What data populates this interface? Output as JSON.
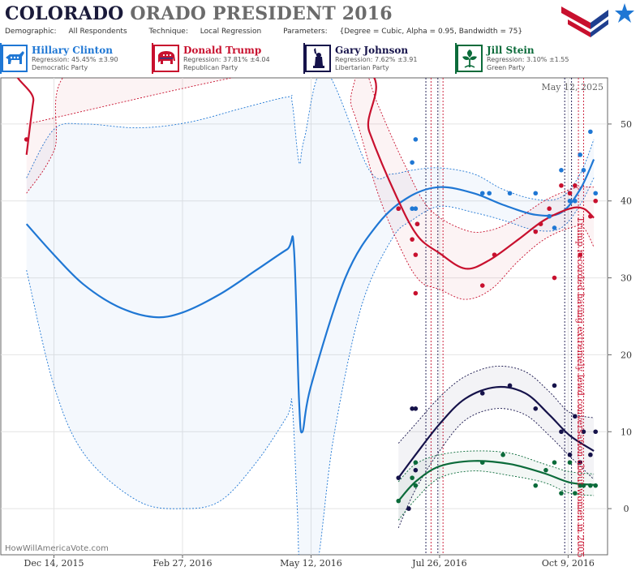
{
  "header": {
    "title_dark": "COLORADO",
    "title_grey": "ORADO PRESIDENT 2016",
    "demographic_label": "Demographic:",
    "demographic_value": "All Respondents",
    "technique_label": "Technique:",
    "technique_value": "Local Regression",
    "parameters_label": "Parameters:",
    "parameters_value": "{Degree = Cubic, Alpha = 0.95, Bandwidth = 75}"
  },
  "candidates": [
    {
      "name": "Hillary Clinton",
      "regression": "Regression: 45.45% ±3.90",
      "party": "Democratic Party",
      "color": "#1f77d4",
      "icon": "donkey-icon"
    },
    {
      "name": "Donald Trump",
      "regression": "Regression: 37.81% ±4.04",
      "party": "Republican Party",
      "color": "#c8102e",
      "icon": "elephant-icon"
    },
    {
      "name": "Gary Johnson",
      "regression": "Regression: 7.62% ±3.91",
      "party": "Libertarian Party",
      "color": "#15124a",
      "icon": "liberty-torch-icon"
    },
    {
      "name": "Jill Stein",
      "regression": "Regression: 3.10% ±1.55",
      "party": "Green Party",
      "color": "#0b6b3a",
      "icon": "leaf-icon"
    }
  ],
  "chart_data": {
    "type": "line",
    "date_label": "May 12, 2025",
    "watermark": "HowWillAmericaVote.com",
    "annotation": "Trump recorded having extremely lewd conversation about women in 2005",
    "x_ticks": [
      {
        "date": "2015-12-14",
        "label": "Dec 14, 2015"
      },
      {
        "date": "2016-02-27",
        "label": "Feb 27, 2016"
      },
      {
        "date": "2016-05-12",
        "label": "May 12, 2016"
      },
      {
        "date": "2016-07-26",
        "label": "Jul 26, 2016"
      },
      {
        "date": "2016-10-09",
        "label": "Oct 9, 2016"
      }
    ],
    "y_ticks": [
      0,
      10,
      20,
      30,
      40,
      50
    ],
    "ylim": [
      -6,
      56
    ],
    "xlim": [
      "2015-11-13",
      "2016-11-01"
    ],
    "event_lines": [
      {
        "date": "2016-07-18",
        "color": "#15124a"
      },
      {
        "date": "2016-07-21",
        "color": "#c8102e"
      },
      {
        "date": "2016-07-25",
        "color": "#15124a"
      },
      {
        "date": "2016-07-28",
        "color": "#c8102e"
      },
      {
        "date": "2016-10-07",
        "color": "#15124a"
      },
      {
        "date": "2016-10-11",
        "color": "#15124a"
      },
      {
        "date": "2016-10-15",
        "color": "#c8102e"
      },
      {
        "date": "2016-10-18",
        "color": "#c8102e"
      }
    ],
    "series": [
      {
        "name": "Hillary Clinton",
        "color": "#1f77d4",
        "band_fill": "rgba(31,119,212,0.05)",
        "line": [
          [
            "2015-11-28",
            37
          ],
          [
            "2015-12-14",
            33
          ],
          [
            "2015-12-31",
            29.2
          ],
          [
            "2016-01-20",
            26.3
          ],
          [
            "2016-02-10",
            24.9
          ],
          [
            "2016-02-27",
            25.5
          ],
          [
            "2016-03-20",
            27.9
          ],
          [
            "2016-04-10",
            31
          ],
          [
            "2016-04-28",
            33.7
          ],
          [
            "2016-05-02",
            33.9
          ],
          [
            "2016-05-05",
            14
          ],
          [
            "2016-05-07",
            10
          ],
          [
            "2016-05-12",
            16
          ],
          [
            "2016-06-01",
            30
          ],
          [
            "2016-06-20",
            37
          ],
          [
            "2016-07-08",
            40.5
          ],
          [
            "2016-07-26",
            41.8
          ],
          [
            "2016-08-15",
            41
          ],
          [
            "2016-09-01",
            39.5
          ],
          [
            "2016-09-20",
            38.2
          ],
          [
            "2016-10-05",
            38.5
          ],
          [
            "2016-10-16",
            41.5
          ],
          [
            "2016-10-24",
            45.4
          ]
        ],
        "upper": [
          [
            "2015-11-28",
            43
          ],
          [
            "2015-12-14",
            49.3
          ],
          [
            "2016-01-01",
            50
          ],
          [
            "2016-02-01",
            49.5
          ],
          [
            "2016-03-01",
            50.2
          ],
          [
            "2016-04-01",
            52
          ],
          [
            "2016-04-28",
            53.5
          ],
          [
            "2016-05-01",
            52.8
          ],
          [
            "2016-05-05",
            45
          ],
          [
            "2016-05-08",
            48
          ],
          [
            "2016-05-20",
            57
          ],
          [
            "2016-06-15",
            44
          ],
          [
            "2016-06-28",
            43.5
          ],
          [
            "2016-07-10",
            44
          ],
          [
            "2016-07-26",
            44.3
          ],
          [
            "2016-08-15",
            43.5
          ],
          [
            "2016-09-01",
            41.5
          ],
          [
            "2016-09-20",
            40.2
          ],
          [
            "2016-10-05",
            40.5
          ],
          [
            "2016-10-16",
            43.5
          ],
          [
            "2016-10-24",
            48
          ]
        ],
        "lower": [
          [
            "2015-11-28",
            31
          ],
          [
            "2015-12-14",
            16
          ],
          [
            "2016-01-01",
            7
          ],
          [
            "2016-02-01",
            1
          ],
          [
            "2016-02-27",
            0
          ],
          [
            "2016-03-20",
            1
          ],
          [
            "2016-04-10",
            6
          ],
          [
            "2016-04-28",
            12
          ],
          [
            "2016-05-01",
            13.5
          ],
          [
            "2016-05-04",
            0
          ],
          [
            "2016-05-06",
            -8
          ],
          [
            "2016-05-15",
            -8
          ],
          [
            "2016-05-25",
            9
          ],
          [
            "2016-06-10",
            26
          ],
          [
            "2016-06-28",
            35
          ],
          [
            "2016-07-10",
            37.5
          ],
          [
            "2016-07-26",
            39.3
          ],
          [
            "2016-08-15",
            38.5
          ],
          [
            "2016-09-01",
            37.5
          ],
          [
            "2016-09-20",
            36.2
          ],
          [
            "2016-10-05",
            36.5
          ],
          [
            "2016-10-16",
            39.5
          ],
          [
            "2016-10-24",
            43
          ]
        ],
        "points": [
          [
            "2016-07-02",
            39
          ],
          [
            "2016-07-10",
            39
          ],
          [
            "2016-07-12",
            39
          ],
          [
            "2016-07-10",
            45
          ],
          [
            "2016-07-12",
            48
          ],
          [
            "2016-07-13",
            37
          ],
          [
            "2016-08-20",
            41
          ],
          [
            "2016-08-24",
            41
          ],
          [
            "2016-09-05",
            41
          ],
          [
            "2016-09-20",
            41
          ],
          [
            "2016-09-28",
            38
          ],
          [
            "2016-10-01",
            36.5
          ],
          [
            "2016-10-05",
            44
          ],
          [
            "2016-10-10",
            40
          ],
          [
            "2016-10-13",
            40
          ],
          [
            "2016-10-16",
            46
          ],
          [
            "2016-10-18",
            44
          ],
          [
            "2016-10-22",
            49
          ],
          [
            "2016-10-25",
            41
          ]
        ]
      },
      {
        "name": "Donald Trump",
        "color": "#c8102e",
        "band_fill": "rgba(200,16,46,0.05)",
        "line": [
          [
            "2015-11-28",
            46
          ],
          [
            "2015-12-02",
            53
          ],
          [
            "2015-12-06",
            58
          ],
          [
            "2016-06-02",
            58
          ],
          [
            "2016-06-15",
            49
          ],
          [
            "2016-07-01",
            40.5
          ],
          [
            "2016-07-13",
            35.5
          ],
          [
            "2016-07-26",
            33.2
          ],
          [
            "2016-08-10",
            31.2
          ],
          [
            "2016-08-24",
            32.3
          ],
          [
            "2016-09-10",
            35
          ],
          [
            "2016-09-25",
            37.5
          ],
          [
            "2016-10-10",
            39
          ],
          [
            "2016-10-18",
            39
          ],
          [
            "2016-10-24",
            37.8
          ]
        ],
        "upper": [
          [
            "2015-11-28",
            41
          ],
          [
            "2015-12-14",
            46.5
          ],
          [
            "2016-01-01",
            58
          ],
          [
            "2016-05-25",
            58
          ],
          [
            "2016-06-10",
            58
          ],
          [
            "2016-06-20",
            52.5
          ],
          [
            "2016-07-05",
            45
          ],
          [
            "2016-07-20",
            39
          ],
          [
            "2016-08-10",
            36.2
          ],
          [
            "2016-08-25",
            36.2
          ],
          [
            "2016-09-10",
            37.8
          ],
          [
            "2016-09-25",
            40
          ],
          [
            "2016-10-10",
            41.5
          ],
          [
            "2016-10-18",
            41.8
          ],
          [
            "2016-10-24",
            41.8
          ]
        ],
        "lower": [
          [
            "2015-11-28",
            50
          ],
          [
            "2016-05-20",
            58
          ],
          [
            "2016-06-05",
            52
          ],
          [
            "2016-06-20",
            41
          ],
          [
            "2016-07-05",
            33
          ],
          [
            "2016-07-15",
            29.5
          ],
          [
            "2016-07-26",
            28.5
          ],
          [
            "2016-08-10",
            27.2
          ],
          [
            "2016-08-25",
            28.5
          ],
          [
            "2016-09-10",
            32.2
          ],
          [
            "2016-09-25",
            35
          ],
          [
            "2016-10-10",
            36.5
          ],
          [
            "2016-10-18",
            36.5
          ],
          [
            "2016-10-24",
            34
          ]
        ],
        "points": [
          [
            "2015-11-28",
            48
          ],
          [
            "2016-07-02",
            39
          ],
          [
            "2016-07-10",
            35
          ],
          [
            "2016-07-12",
            33
          ],
          [
            "2016-07-12",
            28
          ],
          [
            "2016-07-13",
            37
          ],
          [
            "2016-08-20",
            29
          ],
          [
            "2016-08-27",
            33
          ],
          [
            "2016-09-20",
            36
          ],
          [
            "2016-09-23",
            37
          ],
          [
            "2016-09-28",
            39
          ],
          [
            "2016-10-01",
            30
          ],
          [
            "2016-10-05",
            42
          ],
          [
            "2016-10-10",
            41
          ],
          [
            "2016-10-13",
            42
          ],
          [
            "2016-10-16",
            33
          ],
          [
            "2016-10-22",
            38
          ],
          [
            "2016-10-25",
            40
          ]
        ]
      },
      {
        "name": "Gary Johnson",
        "color": "#15124a",
        "band_fill": "rgba(21,18,74,0.05)",
        "line": [
          [
            "2016-07-02",
            4
          ],
          [
            "2016-07-12",
            7
          ],
          [
            "2016-07-26",
            11
          ],
          [
            "2016-08-10",
            14.3
          ],
          [
            "2016-08-28",
            15.8
          ],
          [
            "2016-09-14",
            15
          ],
          [
            "2016-09-28",
            12.2
          ],
          [
            "2016-10-10",
            9.5
          ],
          [
            "2016-10-24",
            7.5
          ]
        ],
        "upper": [
          [
            "2016-07-02",
            8.5
          ],
          [
            "2016-07-12",
            11
          ],
          [
            "2016-07-26",
            14.5
          ],
          [
            "2016-08-10",
            17.2
          ],
          [
            "2016-08-28",
            18.5
          ],
          [
            "2016-09-14",
            17.8
          ],
          [
            "2016-09-28",
            15.2
          ],
          [
            "2016-10-10",
            12.5
          ],
          [
            "2016-10-24",
            11.8
          ]
        ],
        "lower": [
          [
            "2016-07-02",
            -2.5
          ],
          [
            "2016-07-12",
            2.5
          ],
          [
            "2016-07-26",
            7.5
          ],
          [
            "2016-08-10",
            11.5
          ],
          [
            "2016-08-28",
            13
          ],
          [
            "2016-09-14",
            12.2
          ],
          [
            "2016-09-28",
            9.5
          ],
          [
            "2016-10-10",
            6.8
          ],
          [
            "2016-10-24",
            3.8
          ]
        ],
        "points": [
          [
            "2016-07-02",
            4
          ],
          [
            "2016-07-10",
            13
          ],
          [
            "2016-07-12",
            13
          ],
          [
            "2016-07-12",
            5
          ],
          [
            "2016-07-08",
            0
          ],
          [
            "2016-08-20",
            15
          ],
          [
            "2016-09-05",
            16
          ],
          [
            "2016-09-20",
            13
          ],
          [
            "2016-10-01",
            16
          ],
          [
            "2016-10-05",
            10
          ],
          [
            "2016-10-10",
            7
          ],
          [
            "2016-10-13",
            12
          ],
          [
            "2016-10-16",
            6
          ],
          [
            "2016-10-18",
            10
          ],
          [
            "2016-10-22",
            7
          ],
          [
            "2016-10-25",
            10
          ]
        ]
      },
      {
        "name": "Jill Stein",
        "color": "#0b6b3a",
        "band_fill": "rgba(11,107,58,0.05)",
        "line": [
          [
            "2016-07-02",
            1
          ],
          [
            "2016-07-12",
            3.5
          ],
          [
            "2016-07-26",
            5.5
          ],
          [
            "2016-08-15",
            6.2
          ],
          [
            "2016-09-05",
            5.8
          ],
          [
            "2016-09-25",
            4.6
          ],
          [
            "2016-10-10",
            3.4
          ],
          [
            "2016-10-24",
            3.1
          ]
        ],
        "upper": [
          [
            "2016-07-02",
            3.5
          ],
          [
            "2016-07-12",
            5.8
          ],
          [
            "2016-07-26",
            7
          ],
          [
            "2016-08-15",
            7.5
          ],
          [
            "2016-09-05",
            7.2
          ],
          [
            "2016-09-25",
            5.8
          ],
          [
            "2016-10-10",
            4.8
          ],
          [
            "2016-10-24",
            4.5
          ]
        ],
        "lower": [
          [
            "2016-07-02",
            -1.5
          ],
          [
            "2016-07-12",
            1.2
          ],
          [
            "2016-07-26",
            4
          ],
          [
            "2016-08-15",
            4.9
          ],
          [
            "2016-09-05",
            4.3
          ],
          [
            "2016-09-25",
            3.4
          ],
          [
            "2016-10-10",
            2
          ],
          [
            "2016-10-24",
            1.7
          ]
        ],
        "points": [
          [
            "2016-07-02",
            1
          ],
          [
            "2016-07-10",
            4
          ],
          [
            "2016-07-12",
            6
          ],
          [
            "2016-07-12",
            3
          ],
          [
            "2016-08-20",
            6
          ],
          [
            "2016-09-01",
            7
          ],
          [
            "2016-09-20",
            3
          ],
          [
            "2016-09-26",
            5
          ],
          [
            "2016-10-01",
            6
          ],
          [
            "2016-10-05",
            2
          ],
          [
            "2016-10-10",
            6
          ],
          [
            "2016-10-13",
            2
          ],
          [
            "2016-10-16",
            3
          ],
          [
            "2016-10-18",
            3
          ],
          [
            "2016-10-22",
            3
          ],
          [
            "2016-10-25",
            3
          ]
        ]
      }
    ]
  }
}
